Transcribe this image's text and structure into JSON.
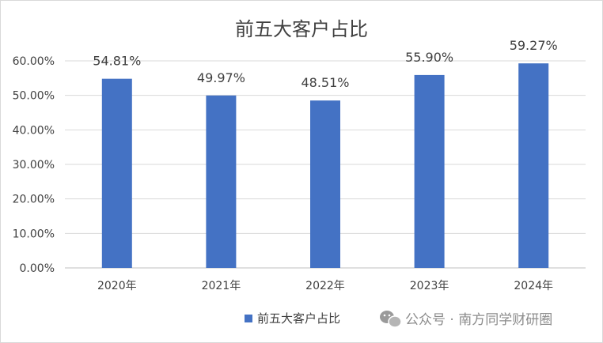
{
  "chart_data": {
    "type": "bar",
    "title": "前五大客户占比",
    "categories": [
      "2020年",
      "2021年",
      "2022年",
      "2023年",
      "2024年"
    ],
    "series": [
      {
        "name": "前五大客户占比",
        "values": [
          54.81,
          49.97,
          48.51,
          55.9,
          59.27
        ],
        "labels": [
          "54.81%",
          "49.97%",
          "48.51%",
          "55.90%",
          "59.27%"
        ],
        "color": "#4472c4"
      }
    ],
    "y_ticks": [
      "0.00%",
      "10.00%",
      "20.00%",
      "30.00%",
      "40.00%",
      "50.00%",
      "60.00%"
    ],
    "ylim": [
      0,
      60
    ],
    "grid": true,
    "legend_position": "bottom"
  },
  "watermark": {
    "text": "公众号 · 南方同学财研圈",
    "icon": "wechat-icon"
  }
}
